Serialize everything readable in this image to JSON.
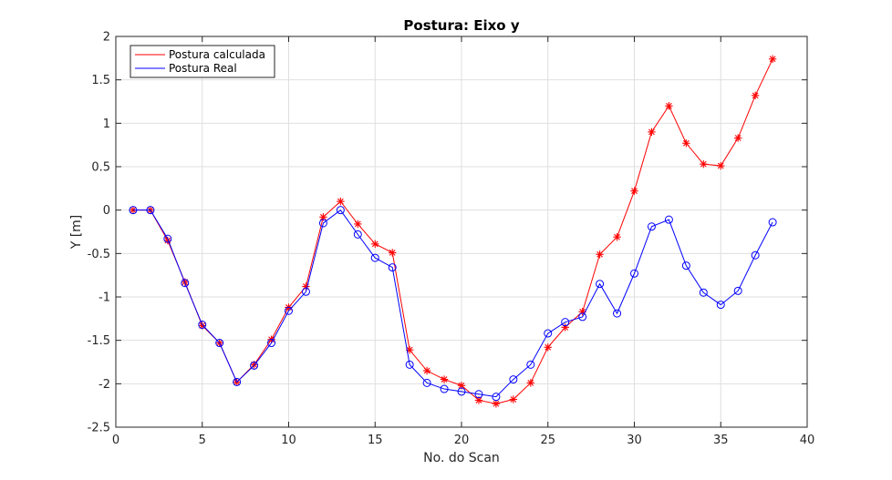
{
  "chart_data": {
    "type": "line",
    "title": "Postura: Eixo y",
    "xlabel": "No. do Scan",
    "ylabel": "Y [m]",
    "xlim": [
      0,
      40
    ],
    "ylim": [
      -2.5,
      2
    ],
    "xticks": [
      0,
      5,
      10,
      15,
      20,
      25,
      30,
      35,
      40
    ],
    "yticks": [
      -2.5,
      -2,
      -1.5,
      -1,
      -0.5,
      0,
      0.5,
      1,
      1.5,
      2
    ],
    "xtick_labels": [
      "0",
      "5",
      "10",
      "15",
      "20",
      "25",
      "30",
      "35",
      "40"
    ],
    "ytick_labels": [
      "-2.5",
      "-2",
      "-1.5",
      "-1",
      "-0.5",
      "0",
      "0.5",
      "1",
      "1.5",
      "2"
    ],
    "grid": true,
    "legend_position": "top-left",
    "x": [
      1,
      2,
      3,
      4,
      5,
      6,
      7,
      8,
      9,
      10,
      11,
      12,
      13,
      14,
      15,
      16,
      17,
      18,
      19,
      20,
      21,
      22,
      23,
      24,
      25,
      26,
      27,
      28,
      29,
      30,
      31,
      32,
      33,
      34,
      35,
      36,
      37,
      38
    ],
    "series": [
      {
        "name": "Postura calculada",
        "color": "#ff0000",
        "marker": "asterisk",
        "values": [
          0,
          0,
          -0.35,
          -0.83,
          -1.33,
          -1.53,
          -1.98,
          -1.78,
          -1.49,
          -1.12,
          -0.88,
          -0.08,
          0.1,
          -0.16,
          -0.39,
          -0.49,
          -1.61,
          -1.85,
          -1.95,
          -2.02,
          -2.19,
          -2.23,
          -2.18,
          -1.99,
          -1.58,
          -1.35,
          -1.17,
          -0.51,
          -0.31,
          0.22,
          0.9,
          1.2,
          0.77,
          0.53,
          0.51,
          0.83,
          1.32,
          1.74
        ]
      },
      {
        "name": "Postura Real",
        "color": "#0000ff",
        "marker": "circle",
        "values": [
          0,
          0,
          -0.33,
          -0.84,
          -1.32,
          -1.53,
          -1.98,
          -1.79,
          -1.53,
          -1.16,
          -0.94,
          -0.15,
          0,
          -0.28,
          -0.55,
          -0.66,
          -1.78,
          -1.99,
          -2.06,
          -2.09,
          -2.12,
          -2.15,
          -1.95,
          -1.78,
          -1.42,
          -1.29,
          -1.23,
          -0.85,
          -1.19,
          -0.73,
          -0.19,
          -0.11,
          -0.64,
          -0.95,
          -1.09,
          -0.93,
          -0.52,
          -0.14
        ]
      }
    ]
  }
}
